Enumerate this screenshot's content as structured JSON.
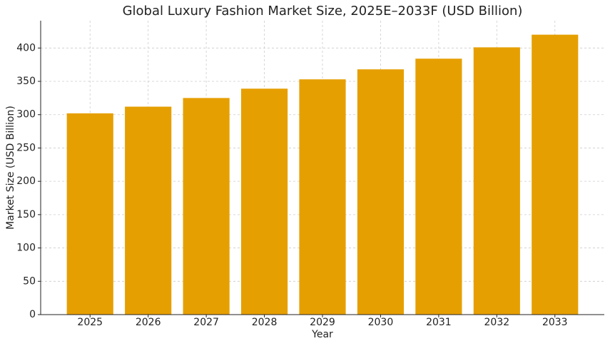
{
  "chart_data": {
    "type": "bar",
    "title": "Global Luxury Fashion Market Size, 2025E–2033F (USD Billion)",
    "x_label": "Year",
    "y_label": "Market Size (USD Billion)",
    "categories": [
      "2025",
      "2026",
      "2027",
      "2028",
      "2029",
      "2030",
      "2031",
      "2032",
      "2033"
    ],
    "values": [
      302,
      312,
      325,
      339,
      353,
      368,
      384,
      401,
      420
    ],
    "color": "#e69f00",
    "ylim": [
      0,
      441
    ],
    "yticks": [
      0,
      50,
      100,
      150,
      200,
      250,
      300,
      350,
      400
    ],
    "grid": true
  }
}
